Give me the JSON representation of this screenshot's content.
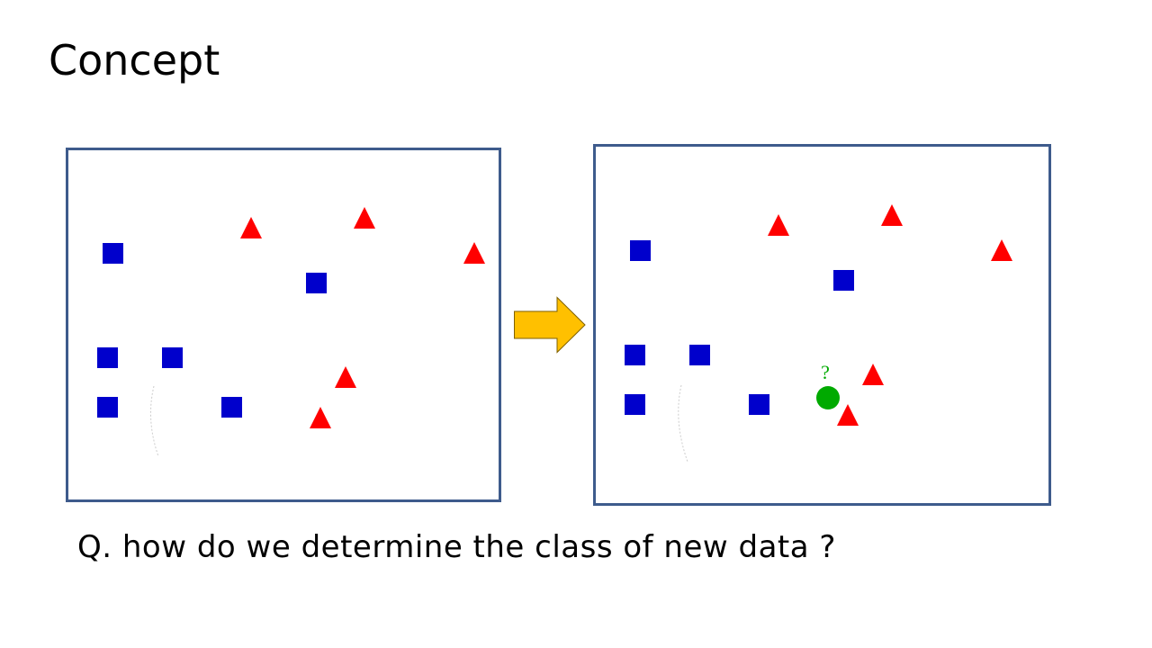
{
  "slide": {
    "title": "Concept",
    "question": "Q. how do we determine the class of new data ?"
  },
  "panels": {
    "left": {
      "squares": 6,
      "triangles": 5
    },
    "right": {
      "squares": 6,
      "triangles": 5,
      "new_point_label": "?"
    }
  },
  "colors": {
    "square_class": "#0000cc",
    "triangle_class": "#ff0000",
    "new_point": "#00aa00",
    "panel_border": "#3e5b8c",
    "arrow_fill": "#ffc000",
    "arrow_stroke": "#7f6000"
  }
}
